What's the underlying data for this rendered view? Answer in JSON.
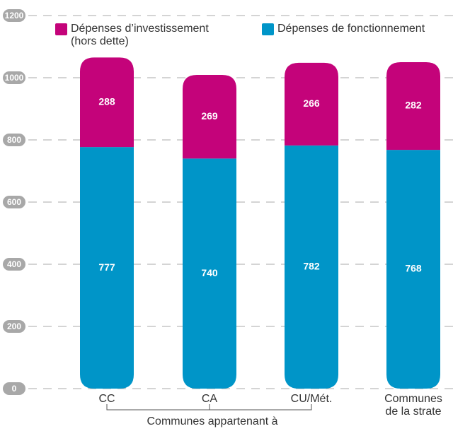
{
  "chart_data": {
    "type": "stacked_bar",
    "categories": [
      "CC",
      "CA",
      "CU/Mét.",
      "Communes de la strate"
    ],
    "group_label": "Communes appartenant à",
    "series": [
      {
        "name": "Dépenses de fonctionnement",
        "color": "#0095c8",
        "values": [
          777,
          740,
          782,
          768
        ]
      },
      {
        "name": "Dépenses d’investissement (hors dette)",
        "color": "#c4037a",
        "values": [
          288,
          269,
          266,
          282
        ]
      }
    ],
    "ylim": [
      0,
      1200
    ],
    "yticks": [
      0,
      200,
      400,
      600,
      800,
      1000,
      1200
    ],
    "grid": true
  }
}
